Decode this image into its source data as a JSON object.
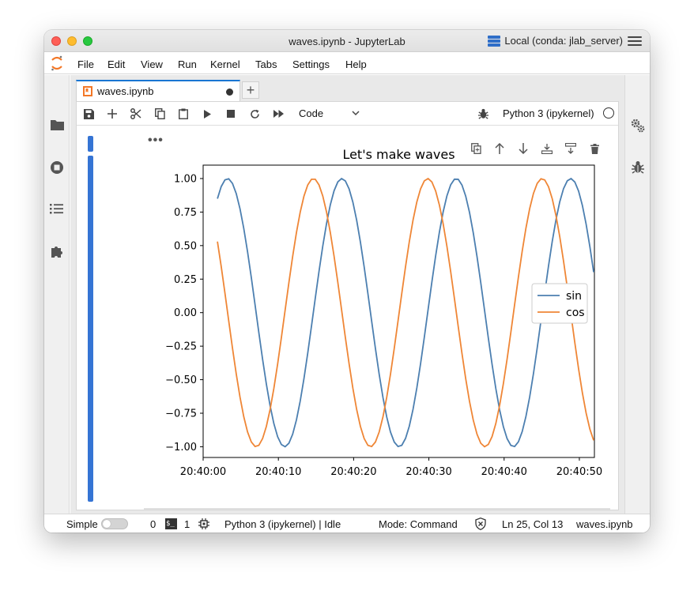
{
  "window": {
    "title": "waves.ipynb - JupyterLab",
    "kernel_label": "Local (conda: jlab_server)"
  },
  "menu": {
    "items": [
      "File",
      "Edit",
      "View",
      "Run",
      "Kernel",
      "Tabs",
      "Settings",
      "Help"
    ]
  },
  "tab": {
    "label": "waves.ipynb",
    "add_symbol": "+"
  },
  "toolbar": {
    "cell_type": "Code",
    "kernel": "Python 3 (ipykernel)"
  },
  "cell": {
    "ellipsis": "•••"
  },
  "status": {
    "mode_label": "Simple",
    "count_a": "0",
    "terminal_glyph": "$_",
    "count_b": "1",
    "kernel_state": "Python 3 (ipykernel) | Idle",
    "mode": "Mode: Command",
    "position": "Ln 25, Col 13",
    "filename": "waves.ipynb"
  },
  "colors": {
    "accent": "#1976d2",
    "collapser": "#3574d4",
    "sin": "#4c7fb0",
    "cos": "#ef8636"
  },
  "chart_data": {
    "type": "line",
    "title": "Let's make waves",
    "xlabel": "",
    "ylabel": "",
    "x_unit": "time",
    "x_start": "20:40:01.9",
    "x_end": "20:40:51.9",
    "xlim": [
      "20:40:00",
      "20:40:52"
    ],
    "ylim": [
      -1.08,
      1.1
    ],
    "x_ticks": [
      "20:40:00",
      "20:40:10",
      "20:40:20",
      "20:40:30",
      "20:40:40",
      "20:40:50"
    ],
    "y_ticks": [
      "1.00",
      "0.75",
      "0.50",
      "0.25",
      "0.00",
      "−0.25",
      "−0.50",
      "−0.75",
      "−1.00"
    ],
    "y_tick_values": [
      1,
      0.75,
      0.5,
      0.25,
      0,
      -0.25,
      -0.5,
      -0.75,
      -1
    ],
    "legend_position": "center-right",
    "grid": false,
    "series": [
      {
        "name": "sin",
        "function": "sin",
        "period_seconds": 15.2,
        "value_at_start": 0.85,
        "color": "#4c7fb0"
      },
      {
        "name": "cos",
        "function": "cos",
        "period_seconds": 15.2,
        "value_at_start": 0.53,
        "color": "#ef8636"
      }
    ]
  }
}
